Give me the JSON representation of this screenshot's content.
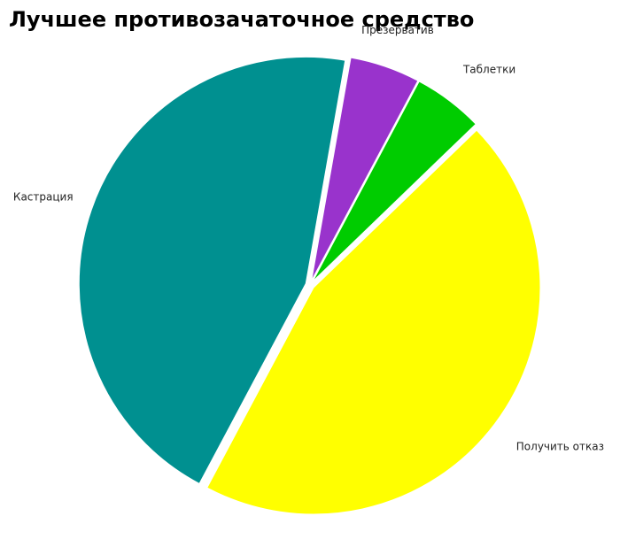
{
  "chart_data": {
    "type": "pie",
    "title": "Лучшее противозачаточное средство",
    "categories": [
      "Презерватив",
      "Таблетки",
      "Получить отказ",
      "Кастрация"
    ],
    "values": [
      5,
      5,
      45,
      45
    ],
    "colors": [
      "#9933cc",
      "#00cc00",
      "#ffff00",
      "#009090"
    ]
  }
}
